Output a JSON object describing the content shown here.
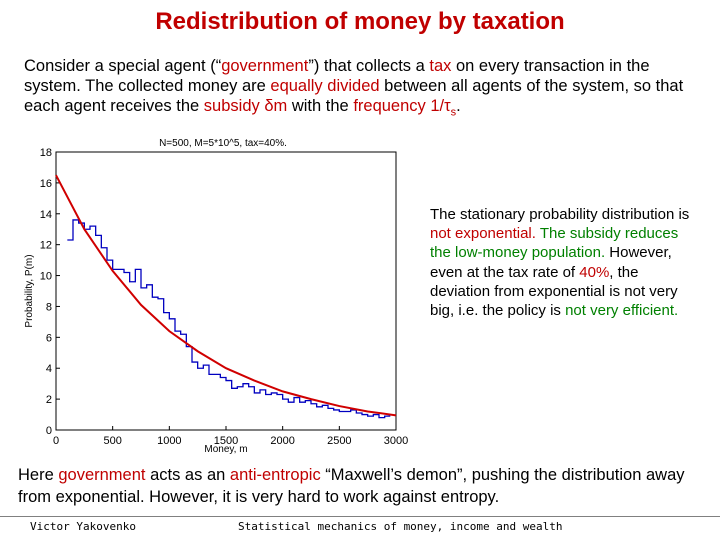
{
  "slide": {
    "title": "Redistribution of money by taxation",
    "intro": [
      {
        "t": "Consider a special agent (“",
        "c": ""
      },
      {
        "t": "government",
        "c": "red"
      },
      {
        "t": "”) that collects a ",
        "c": ""
      },
      {
        "t": "tax",
        "c": "red"
      },
      {
        "t": " on every transaction in the system. The collected money are ",
        "c": ""
      },
      {
        "t": "equally divided",
        "c": "red"
      },
      {
        "t": " between all agents of the system, so that each agent receives the ",
        "c": ""
      },
      {
        "t": "subsidy ",
        "c": "red"
      },
      {
        "t": "δm",
        "c": "red"
      },
      {
        "t": " with the ",
        "c": ""
      },
      {
        "t": "frequency 1/τ",
        "c": "red"
      },
      {
        "t": "s",
        "c": "red-sub"
      },
      {
        "t": ".",
        "c": ""
      }
    ],
    "side_text": [
      {
        "t": "The stationary probability distribution is ",
        "c": ""
      },
      {
        "t": "not exponential.",
        "c": "red"
      },
      {
        "t": " The subsidy reduces the low-money population.",
        "c": "green"
      },
      {
        "t": "  However, even at the tax rate of ",
        "c": ""
      },
      {
        "t": "40%",
        "c": "red"
      },
      {
        "t": ", the deviation from exponential is not very big, i.e. the policy is ",
        "c": ""
      },
      {
        "t": "not very efficient.",
        "c": "green"
      }
    ],
    "bottom_text": [
      {
        "t": "Here ",
        "c": ""
      },
      {
        "t": "government",
        "c": "red"
      },
      {
        "t": " acts as an ",
        "c": ""
      },
      {
        "t": "anti-entropic",
        "c": "red"
      },
      {
        "t": " “Maxwell’s demon”, pushing the distribution away from exponential.  However, it is very hard to work against entropy.",
        "c": ""
      }
    ],
    "footer_left": "Victor Yakovenko",
    "footer_right": "Statistical mechanics of money, income and wealth"
  },
  "chart_data": {
    "type": "line",
    "title": "N=500, M=5*10^5, tax=40%.",
    "xlabel": "Money, m",
    "ylabel": "Probability, P(m)",
    "xlim": [
      0,
      3000
    ],
    "ylim": [
      0,
      18
    ],
    "xticks": [
      "0",
      "500",
      "1000",
      "1500",
      "2000",
      "2500",
      "3000"
    ],
    "yticks": [
      "0",
      "2",
      "4",
      "6",
      "8",
      "10",
      "12",
      "14",
      "16",
      "18"
    ],
    "colors": {
      "histogram": "#0000c0",
      "fit": "#d00000"
    },
    "fit": {
      "x": [
        0,
        250,
        500,
        750,
        1000,
        1250,
        1500,
        1750,
        2000,
        2250,
        2500,
        2750,
        3000
      ],
      "y": [
        16.5,
        13.0,
        10.3,
        8.1,
        6.4,
        5.1,
        4.0,
        3.2,
        2.5,
        2.0,
        1.55,
        1.2,
        0.95
      ]
    },
    "histogram": {
      "x": [
        100,
        150,
        200,
        250,
        300,
        350,
        400,
        450,
        500,
        550,
        600,
        650,
        700,
        750,
        800,
        850,
        900,
        950,
        1000,
        1050,
        1100,
        1150,
        1200,
        1250,
        1300,
        1350,
        1400,
        1450,
        1500,
        1550,
        1600,
        1650,
        1700,
        1750,
        1800,
        1850,
        1900,
        1950,
        2000,
        2050,
        2100,
        2150,
        2200,
        2250,
        2300,
        2350,
        2400,
        2450,
        2500,
        2550,
        2600,
        2650,
        2700,
        2750,
        2800,
        2850,
        2900
      ],
      "y": [
        12.3,
        13.6,
        13.4,
        13.0,
        13.2,
        12.6,
        11.8,
        11.0,
        10.4,
        10.4,
        10.2,
        9.6,
        10.4,
        9.2,
        9.4,
        8.6,
        8.5,
        7.6,
        7.2,
        6.4,
        6.2,
        5.4,
        4.4,
        4.0,
        4.2,
        3.6,
        3.6,
        3.4,
        3.2,
        2.7,
        2.8,
        3.0,
        2.8,
        2.4,
        2.6,
        2.3,
        2.4,
        2.3,
        2.0,
        1.8,
        2.1,
        1.8,
        1.9,
        1.7,
        1.5,
        1.6,
        1.4,
        1.3,
        1.2,
        1.2,
        1.3,
        1.1,
        1.0,
        0.9,
        1.0,
        0.8,
        0.9
      ]
    }
  }
}
